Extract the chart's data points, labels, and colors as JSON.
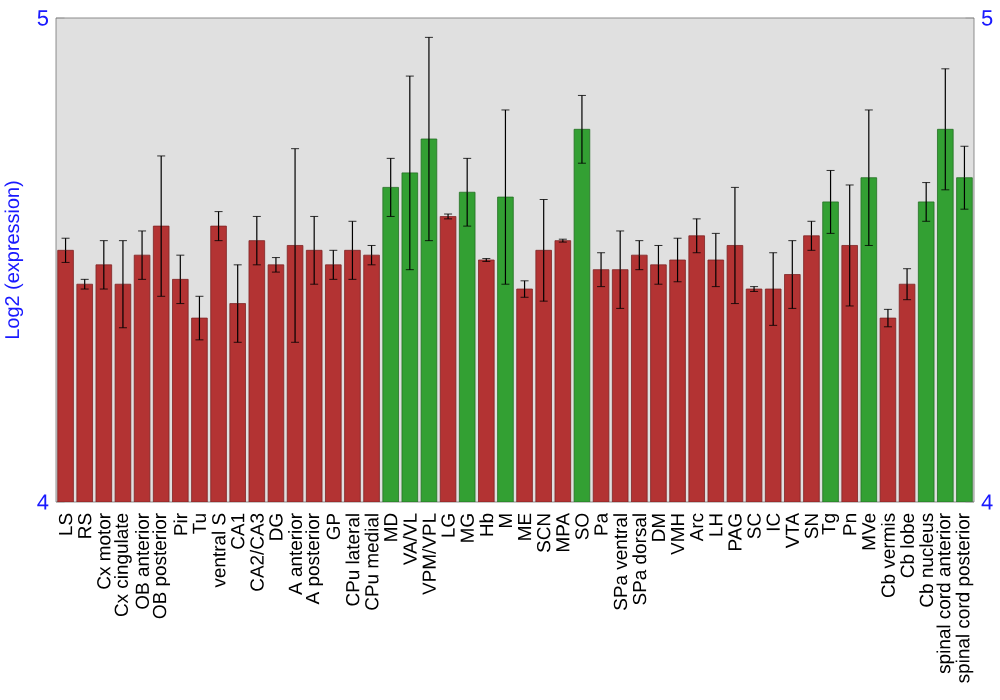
{
  "chart_data": {
    "type": "bar",
    "ylabel": "Log2 (expression)",
    "categories": [
      "LS",
      "RS",
      "Cx motor",
      "Cx cingulate",
      "OB anterior",
      "OB posterior",
      "Pir",
      "Tu",
      "ventral S",
      "CA1",
      "CA2/CA3",
      "DG",
      "A anterior",
      "A posterior",
      "GP",
      "CPu lateral",
      "CPu medial",
      "MD",
      "VA/VL",
      "VPM/VPL",
      "LG",
      "MG",
      "Hb",
      "M",
      "ME",
      "SCN",
      "MPA",
      "SO",
      "Pa",
      "SPa ventral",
      "SPa dorsal",
      "DM",
      "VMH",
      "Arc",
      "LH",
      "PAG",
      "SC",
      "IC",
      "VTA",
      "SN",
      "Tg",
      "Pn",
      "MVe",
      "Cb vermis",
      "Cb lobe",
      "Cb nucleus",
      "spinal cord anterior",
      "spinal cord posterior"
    ],
    "values": [
      4.52,
      4.45,
      4.49,
      4.45,
      4.51,
      4.57,
      4.46,
      4.38,
      4.57,
      4.41,
      4.54,
      4.49,
      4.53,
      4.52,
      4.49,
      4.52,
      4.51,
      4.65,
      4.68,
      4.75,
      4.59,
      4.64,
      4.5,
      4.63,
      4.44,
      4.52,
      4.54,
      4.77,
      4.48,
      4.48,
      4.51,
      4.49,
      4.5,
      4.55,
      4.5,
      4.53,
      4.44,
      4.44,
      4.47,
      4.55,
      4.62,
      4.53,
      4.67,
      4.38,
      4.45,
      4.62,
      4.77,
      4.67
    ],
    "errors": [
      0.025,
      0.01,
      0.05,
      0.09,
      0.05,
      0.145,
      0.05,
      0.045,
      0.03,
      0.08,
      0.05,
      0.015,
      0.2,
      0.07,
      0.03,
      0.06,
      0.02,
      0.06,
      0.2,
      0.21,
      0.005,
      0.07,
      0.003,
      0.18,
      0.017,
      0.105,
      0.003,
      0.07,
      0.035,
      0.08,
      0.03,
      0.04,
      0.045,
      0.035,
      0.055,
      0.12,
      0.005,
      0.075,
      0.07,
      0.03,
      0.065,
      0.125,
      0.14,
      0.018,
      0.032,
      0.04,
      0.125,
      0.065
    ],
    "colors": [
      "#b33333",
      "#b33333",
      "#b33333",
      "#b33333",
      "#b33333",
      "#b33333",
      "#b33333",
      "#b33333",
      "#b33333",
      "#b33333",
      "#b33333",
      "#b33333",
      "#b33333",
      "#b33333",
      "#b33333",
      "#b33333",
      "#b33333",
      "#33a033",
      "#33a033",
      "#33a033",
      "#b33333",
      "#33a033",
      "#b33333",
      "#33a033",
      "#b33333",
      "#b33333",
      "#b33333",
      "#33a033",
      "#b33333",
      "#b33333",
      "#b33333",
      "#b33333",
      "#b33333",
      "#b33333",
      "#b33333",
      "#b33333",
      "#b33333",
      "#b33333",
      "#b33333",
      "#b33333",
      "#33a033",
      "#b33333",
      "#33a033",
      "#b33333",
      "#b33333",
      "#33a033",
      "#33a033",
      "#33a033"
    ],
    "ylim": [
      4,
      5
    ],
    "yticks": [
      4,
      5
    ],
    "y2lim": [
      4,
      5
    ],
    "y2ticks": [
      4,
      5
    ]
  }
}
